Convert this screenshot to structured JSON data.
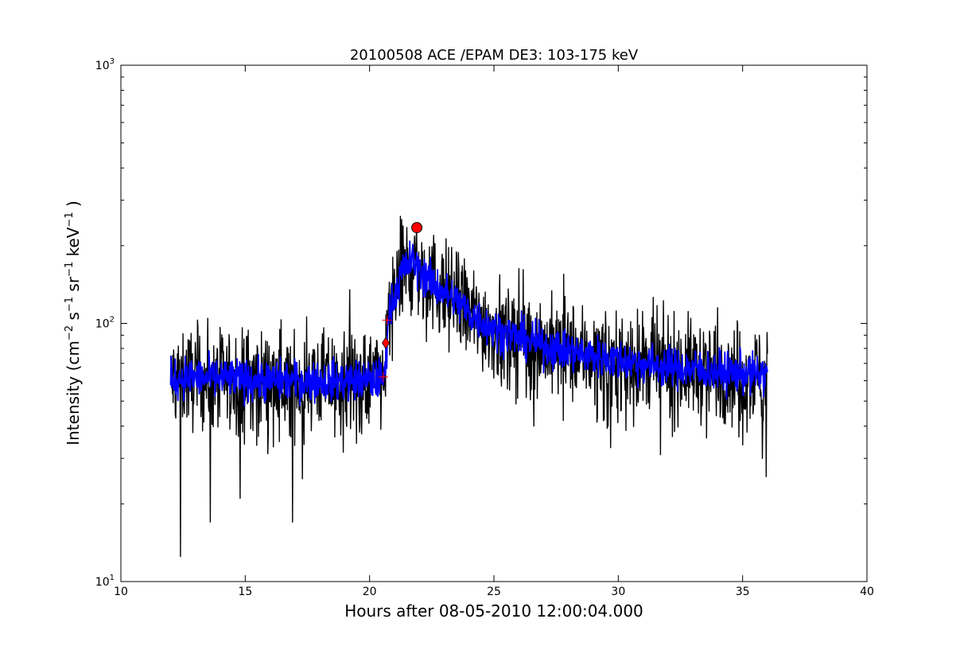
{
  "chart_data": {
    "type": "line",
    "title": "20100508 ACE /EPAM DE3: 103-175 keV",
    "xlabel": "Hours after 08-05-2010 12:00:04.000",
    "ylabel": {
      "prefix": "Intensity (cm",
      "sup1": "−2",
      "mid1": " s",
      "sup2": "−1",
      "mid2": " sr",
      "sup3": "−1",
      "mid3": " keV",
      "sup4": "−1",
      "suffix": " )"
    },
    "xlim": [
      10,
      40
    ],
    "ylim": [
      10,
      1000
    ],
    "yscale": "log",
    "grid": false,
    "x_ticks": [
      {
        "value": 10,
        "label": "10"
      },
      {
        "value": 15,
        "label": "15"
      },
      {
        "value": 20,
        "label": "20"
      },
      {
        "value": 25,
        "label": "25"
      },
      {
        "value": 30,
        "label": "30"
      },
      {
        "value": 35,
        "label": "35"
      },
      {
        "value": 40,
        "label": "40"
      }
    ],
    "y_ticks": [
      {
        "value": 10,
        "base": "10",
        "exp": "1"
      },
      {
        "value": 100,
        "base": "10",
        "exp": "2"
      },
      {
        "value": 1000,
        "base": "10",
        "exp": "3"
      }
    ],
    "series": [
      {
        "role": "raw",
        "color": "#000000",
        "profile": {
          "x": [
            12.0,
            12.5,
            14.0,
            16.0,
            18.0,
            20.0,
            20.6,
            20.75,
            21.0,
            21.4,
            21.7,
            22.0,
            22.5,
            23.0,
            23.5,
            24.0,
            25.0,
            26.0,
            27.0,
            28.0,
            30.0,
            32.0,
            34.0,
            36.0
          ],
          "y": [
            60,
            62,
            61,
            60,
            60,
            60,
            61,
            105,
            130,
            165,
            175,
            160,
            145,
            132,
            122,
            110,
            95,
            88,
            82,
            78,
            72,
            68,
            65,
            63
          ]
        },
        "spikes": [
          {
            "x": 12.4,
            "y": 12.5
          },
          {
            "x": 13.6,
            "y": 17
          },
          {
            "x": 14.8,
            "y": 21
          },
          {
            "x": 16.9,
            "y": 17
          },
          {
            "x": 17.3,
            "y": 25
          },
          {
            "x": 19.2,
            "y": 135
          },
          {
            "x": 21.1,
            "y": 190
          },
          {
            "x": 21.9,
            "y": 225
          },
          {
            "x": 22.4,
            "y": 198
          },
          {
            "x": 23.7,
            "y": 158
          },
          {
            "x": 26.0,
            "y": 163
          },
          {
            "x": 26.6,
            "y": 40
          },
          {
            "x": 27.8,
            "y": 155
          },
          {
            "x": 29.7,
            "y": 33
          },
          {
            "x": 31.7,
            "y": 31
          },
          {
            "x": 34.0,
            "y": 115
          },
          {
            "x": 35.8,
            "y": 30
          },
          {
            "x": 35.95,
            "y": 25.5
          }
        ]
      },
      {
        "role": "smoothed",
        "color": "#0000ff",
        "profile": {
          "x": [
            12.0,
            12.5,
            14.0,
            16.0,
            18.0,
            20.0,
            20.6,
            20.75,
            21.0,
            21.4,
            21.7,
            22.0,
            22.5,
            23.0,
            23.5,
            24.0,
            25.0,
            26.0,
            27.0,
            28.0,
            30.0,
            32.0,
            34.0,
            36.0
          ],
          "y": [
            60,
            62,
            61,
            60,
            60,
            60,
            61,
            105,
            130,
            165,
            175,
            160,
            145,
            132,
            122,
            110,
            95,
            88,
            82,
            78,
            72,
            68,
            65,
            63
          ]
        }
      }
    ],
    "markers": [
      {
        "kind": "circle",
        "color": "#ff0000",
        "x": 21.9,
        "y": 235
      },
      {
        "kind": "diamond",
        "color": "#ff0000",
        "x": 20.65,
        "y": 84
      },
      {
        "kind": "plus",
        "color": "#ff0000",
        "x": 20.7,
        "y": 103
      },
      {
        "kind": "plus",
        "color": "#ff0000",
        "x": 20.55,
        "y": 62
      }
    ]
  }
}
